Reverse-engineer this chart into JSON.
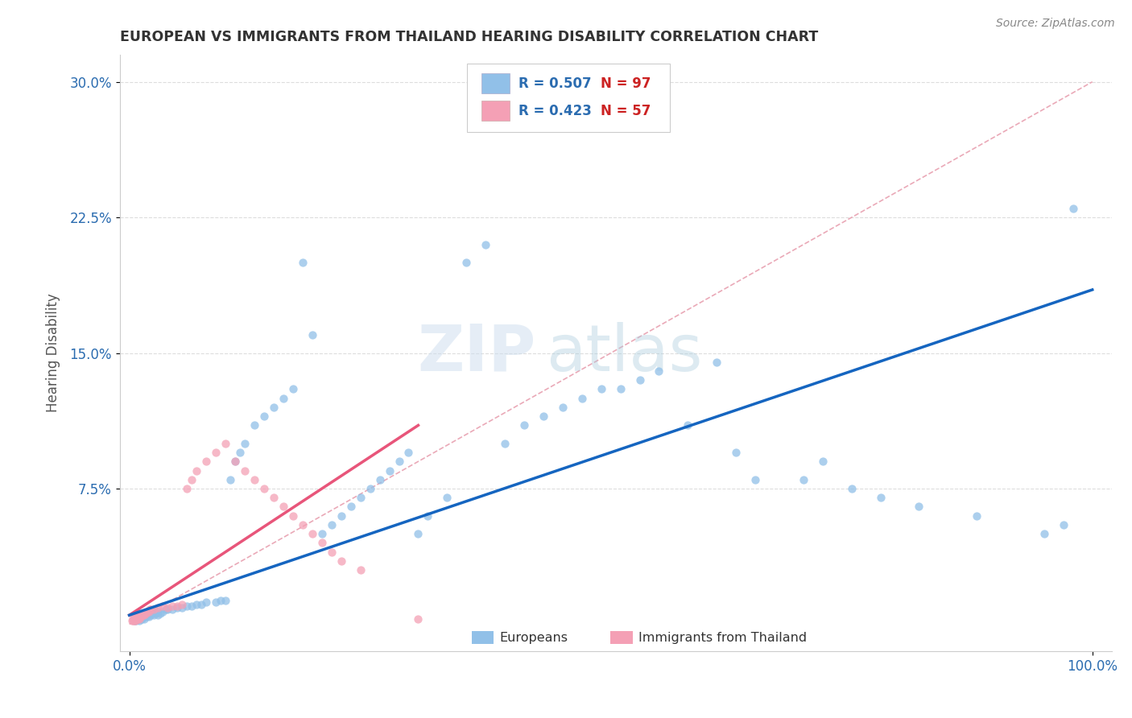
{
  "title": "EUROPEAN VS IMMIGRANTS FROM THAILAND HEARING DISABILITY CORRELATION CHART",
  "source_text": "Source: ZipAtlas.com",
  "ylabel": "Hearing Disability",
  "xlim": [
    -0.01,
    1.02
  ],
  "ylim": [
    -0.015,
    0.315
  ],
  "xtick_labels": [
    "0.0%",
    "100.0%"
  ],
  "xtick_values": [
    0.0,
    1.0
  ],
  "ytick_labels": [
    "7.5%",
    "15.0%",
    "22.5%",
    "30.0%"
  ],
  "ytick_values": [
    0.075,
    0.15,
    0.225,
    0.3
  ],
  "legend_r1": "R = 0.507",
  "legend_n1": "N = 97",
  "legend_r2": "R = 0.423",
  "legend_n2": "N = 57",
  "color_european": "#91C0E8",
  "color_thailand": "#F4A0B5",
  "color_trend_european": "#1565C0",
  "color_trend_thailand": "#E8557A",
  "color_diag": "#E8A0B0",
  "watermark_zip": "ZIP",
  "watermark_atlas": "atlas",
  "title_color": "#333333",
  "axis_label_color": "#2B6CB0",
  "grid_color": "#DDDDDD",
  "eu_trend_start_y": 0.005,
  "eu_trend_end_y": 0.185,
  "th_trend_start_y": 0.005,
  "th_trend_end_y": 0.11,
  "th_trend_end_x": 0.3
}
